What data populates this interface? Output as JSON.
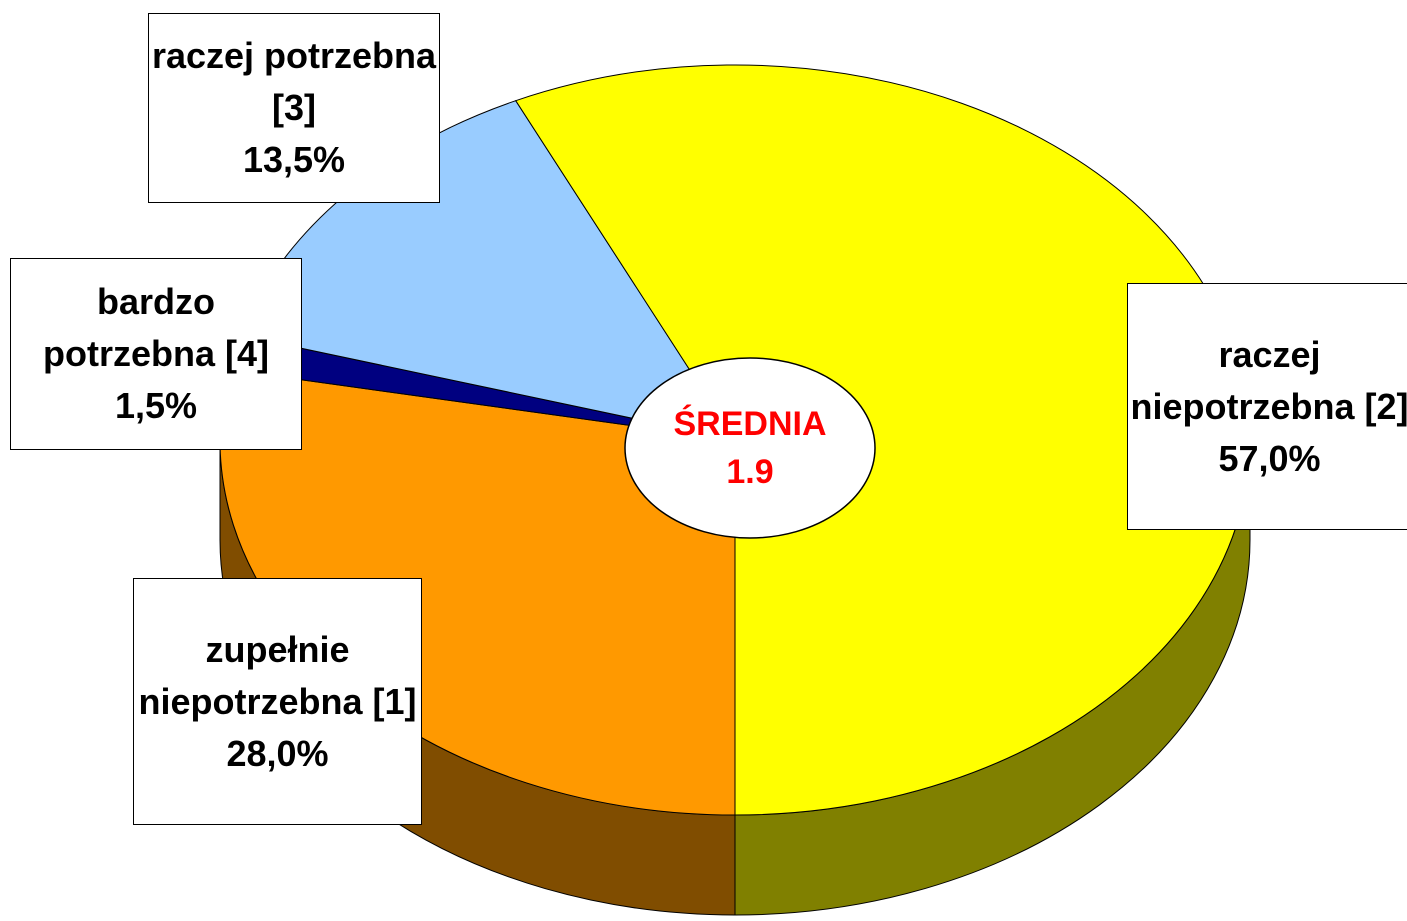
{
  "chart_data": {
    "type": "pie",
    "categories": [
      "zupełnie niepotrzebna [1]",
      "bardzo potrzebna [4]",
      "raczej potrzebna [3]",
      "raczej niepotrzebna [2]"
    ],
    "values": [
      28.0,
      1.5,
      13.5,
      57.0
    ],
    "value_labels": [
      "28,0%",
      "1,5%",
      "13,5%",
      "57,0%"
    ],
    "colors": [
      "#ff9900",
      "#000080",
      "#99ccff",
      "#ffff00"
    ],
    "mean_label": "ŚREDNIA",
    "mean": 1.9
  }
}
